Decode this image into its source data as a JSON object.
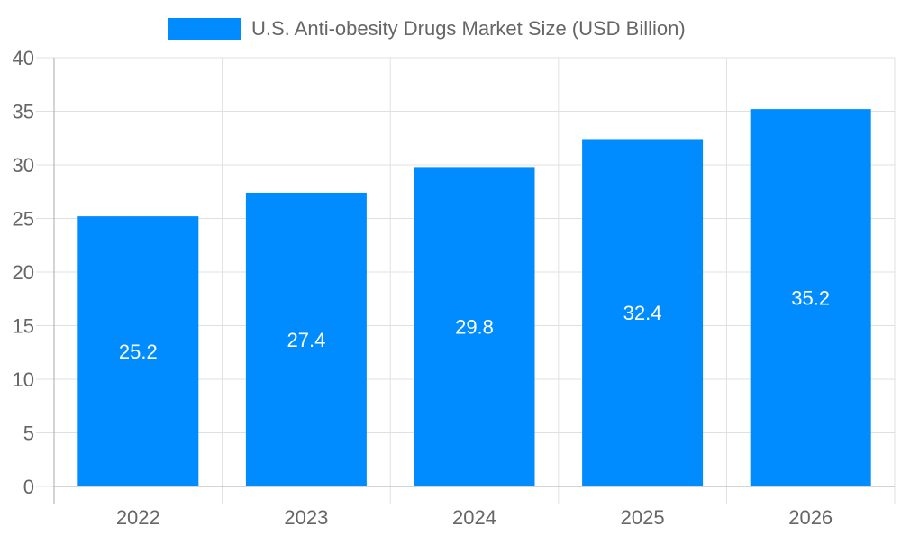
{
  "chart_data": {
    "type": "bar",
    "categories": [
      "2022",
      "2023",
      "2024",
      "2025",
      "2026"
    ],
    "series": [
      {
        "name": "U.S. Anti-obesity Drugs Market Size (USD Billion)",
        "values": [
          25.2,
          27.4,
          29.8,
          32.4,
          35.2
        ],
        "color": "#008cff"
      }
    ],
    "data_labels": [
      "25.2",
      "27.4",
      "29.8",
      "32.4",
      "35.2"
    ],
    "title": "",
    "xlabel": "",
    "ylabel": "",
    "ylim": [
      0,
      40
    ],
    "yticks": [
      "0",
      "5",
      "10",
      "15",
      "20",
      "25",
      "30",
      "35",
      "40"
    ],
    "grid": true,
    "legend_position": "top"
  }
}
